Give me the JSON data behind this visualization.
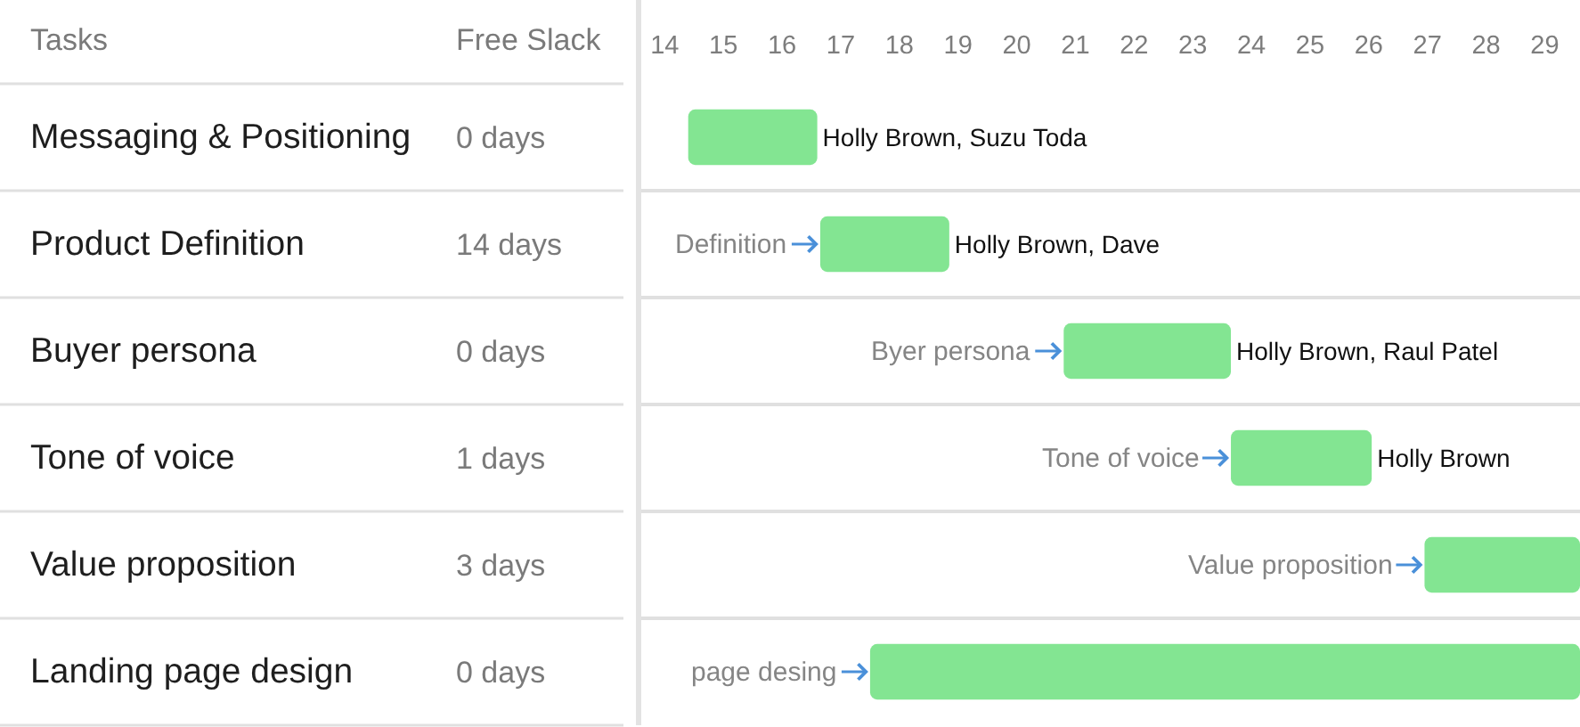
{
  "chart_data": {
    "type": "bar",
    "orientation": "horizontal",
    "ylabel": "Tasks",
    "categories": [
      "Messaging & Positioning",
      "Product Definition",
      "Buyer persona",
      "Tone of voice",
      "Value proposition",
      "Landing page design"
    ],
    "base": [
      14.4,
      16.65,
      20.8,
      23.65,
      26.95,
      17.5
    ],
    "values": [
      2.2,
      2.2,
      2.85,
      2.4,
      2.65,
      12.1
    ],
    "color": "#83e592",
    "value_labels": [
      "Holly Brown, Suzu Toda",
      "Holly Brown, Dave",
      "Holly Brown, Raul Patel",
      "Holly Brown",
      null,
      null
    ],
    "xlim": [
      13.6,
      29.6
    ],
    "xticks": [
      14,
      15,
      16,
      17,
      18,
      19,
      20,
      21,
      22,
      23,
      24,
      25,
      26,
      27,
      28,
      29
    ],
    "grid": "y",
    "annotations": [
      "Free Slack",
      "0 days",
      "14 days",
      "0 days",
      "1 days",
      "3 days",
      "0 days",
      {
        "text": "Definition",
        "x": 16.65,
        "y": "Product Definition"
      },
      {
        "text": "Byer persona",
        "x": 20.8,
        "y": "Buyer persona"
      },
      {
        "text": "Tone of voice",
        "x": 23.65,
        "y": "Tone of voice"
      },
      {
        "text": "Value proposition",
        "x": 26.95,
        "y": "Value proposition"
      },
      {
        "text": "page desing",
        "x": 17.5,
        "y": "Landing page design"
      }
    ]
  }
}
